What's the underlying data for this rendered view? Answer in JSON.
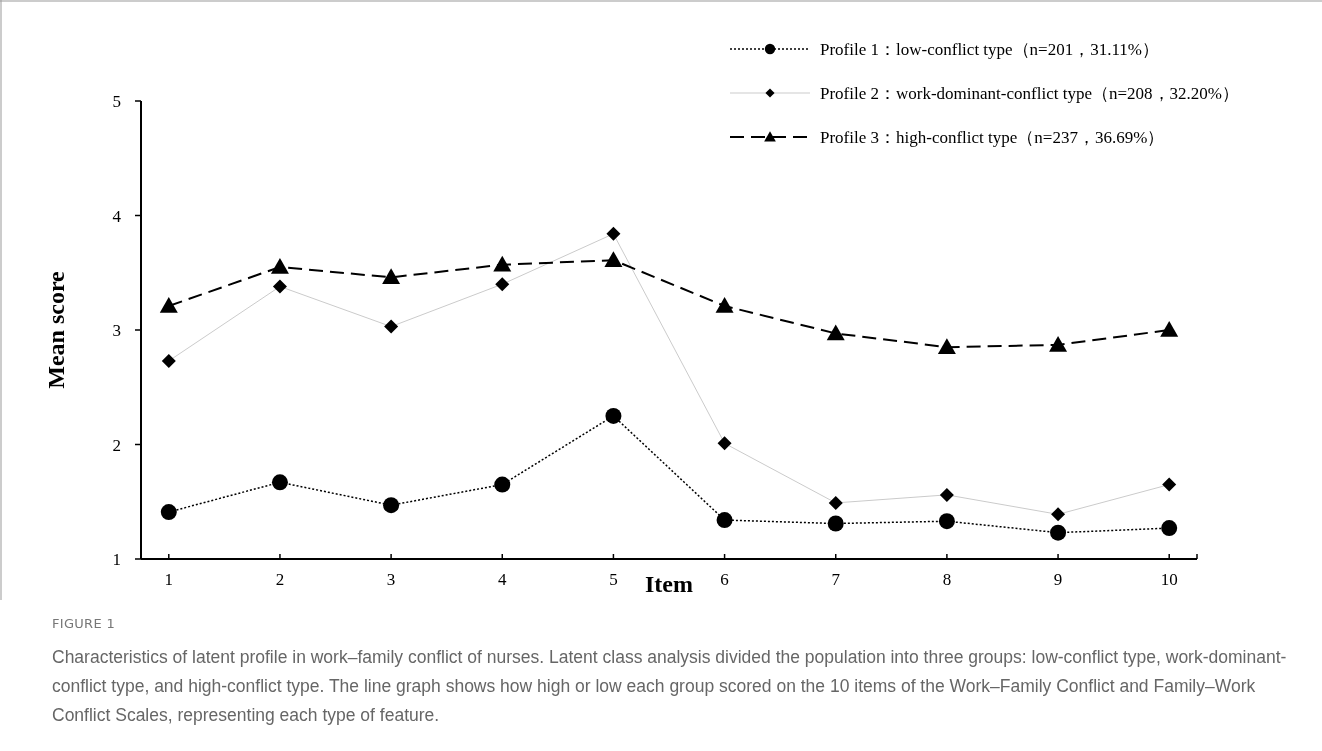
{
  "chart_data": {
    "type": "line",
    "xlabel": "Item",
    "ylabel": "Mean score",
    "categories": [
      "1",
      "2",
      "3",
      "4",
      "5",
      "6",
      "7",
      "8",
      "9",
      "10"
    ],
    "ylim": [
      1,
      5
    ],
    "yticks": [
      1,
      2,
      3,
      4,
      5
    ],
    "grid": false,
    "legend": "top right",
    "series": [
      {
        "name": "Profile 1：low-conflict type（n=201，31.11%）",
        "color": "#000000",
        "marker": "circle",
        "line_style": "dotted",
        "values": [
          1.41,
          1.67,
          1.47,
          1.65,
          2.25,
          1.34,
          1.31,
          1.33,
          1.23,
          1.27
        ]
      },
      {
        "name": "Profile 2：work-dominant-conflict type（n=208，32.20%）",
        "color": "#000000",
        "marker": "diamond",
        "line_style": "solid",
        "values": [
          2.73,
          3.38,
          3.03,
          3.4,
          3.84,
          2.01,
          1.49,
          1.56,
          1.39,
          1.65
        ]
      },
      {
        "name": "Profile 3：high-conflict type（n=237，36.69%）",
        "color": "#000000",
        "marker": "triangle",
        "line_style": "dashed",
        "values": [
          3.21,
          3.55,
          3.46,
          3.57,
          3.61,
          3.21,
          2.97,
          2.85,
          2.87,
          3.0
        ]
      }
    ],
    "annotations": [
      "FIGURE 1",
      "Characteristics of latent profile in work–family conflict of nurses. Latent class analysis divided the population into three groups: low-conflict type, work-dominant-conflict type, and high-conflict type. The line graph shows how high or low each group scored on the 10 items of the Work–Family Conflict and Family–Work Conflict Scales, representing each type of feature."
    ]
  }
}
